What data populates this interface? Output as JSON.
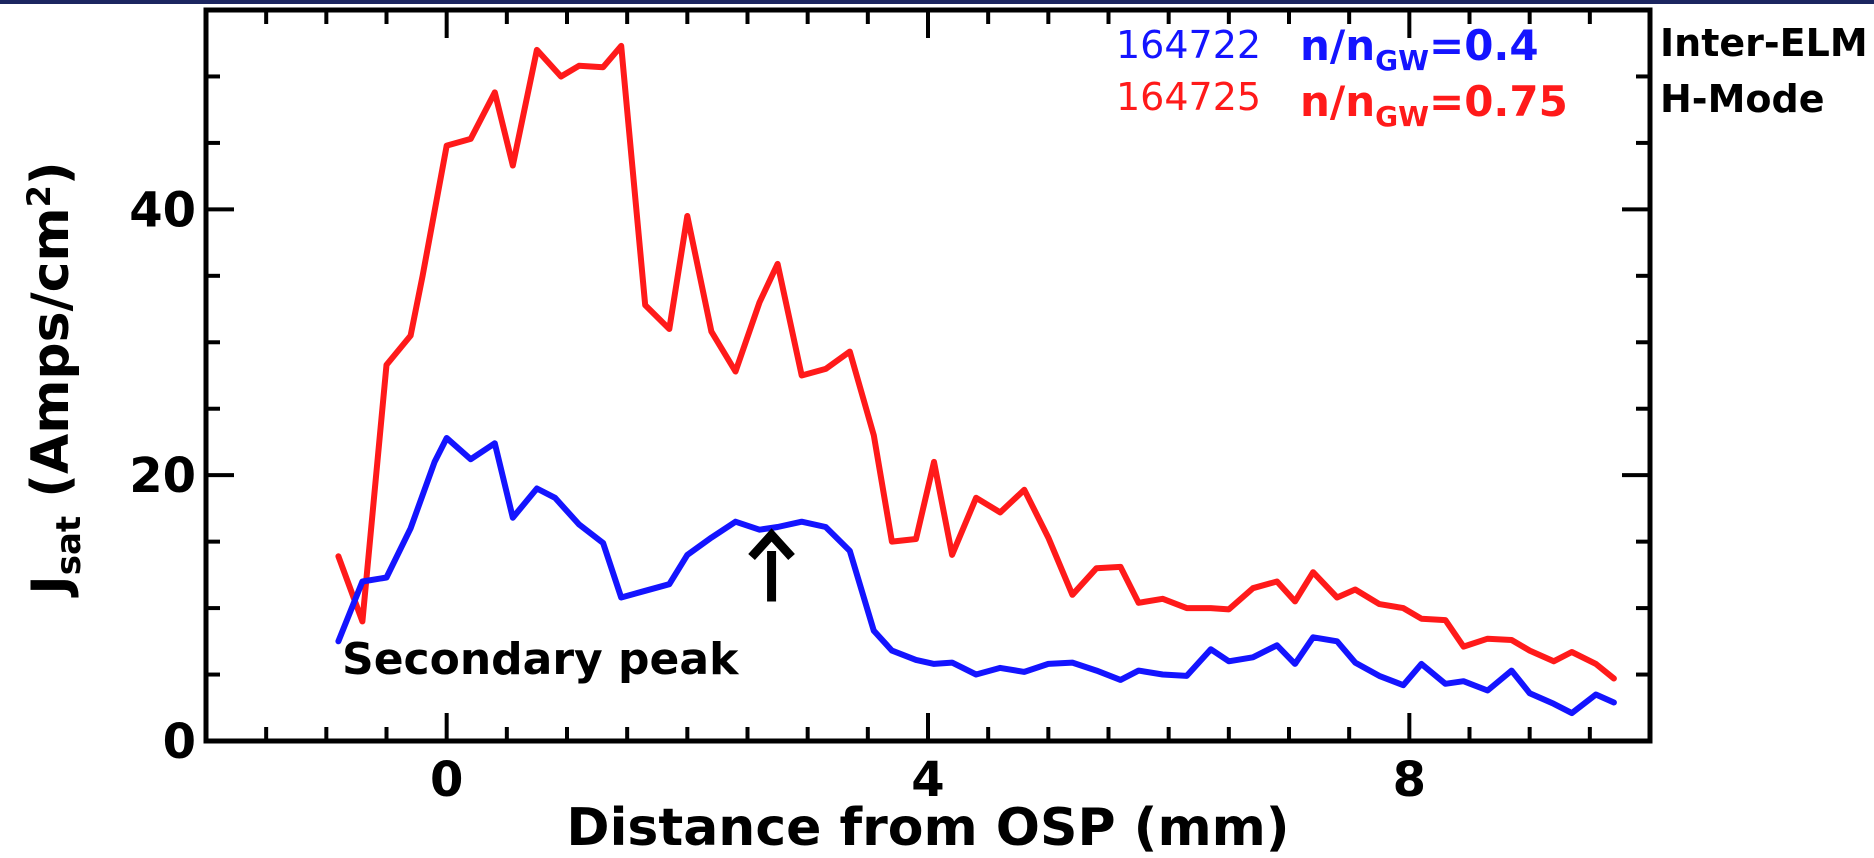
{
  "chart_data": {
    "type": "line",
    "xlabel": "Distance from OSP (mm)",
    "ylabel_main": "J",
    "ylabel_sub": "sat",
    "ylabel_units_pre": " (Amps/cm",
    "ylabel_units_sup": "2",
    "ylabel_units_post": ")",
    "xlim": [
      -2,
      10
    ],
    "ylim": [
      0,
      55
    ],
    "xticks": [
      0,
      4,
      8
    ],
    "yticks": [
      0,
      20,
      40
    ],
    "grid": false,
    "legend": {
      "position": "top-right",
      "entries": [
        {
          "shot": "164722",
          "ratio_pre": "n/n",
          "ratio_sub": "GW",
          "ratio_post": "=0.4",
          "color": "#1414ff"
        },
        {
          "shot": "164725",
          "ratio_pre": "n/n",
          "ratio_sub": "GW",
          "ratio_post": "=0.75",
          "color": "#ff1a1a"
        }
      ]
    },
    "side_text": [
      "Inter-ELM",
      "H-Mode"
    ],
    "annotation": {
      "text": "Secondary peak",
      "arrow_x": 2.7,
      "arrow_y_tip": 15.5,
      "arrow_y_tail": 10.5
    },
    "series": [
      {
        "color": "#ff1a1a",
        "x": [
          -0.9,
          -0.7,
          -0.5,
          -0.3,
          -0.2,
          0.0,
          0.2,
          0.4,
          0.55,
          0.75,
          0.95,
          1.1,
          1.3,
          1.45,
          1.65,
          1.85,
          2.0,
          2.2,
          2.4,
          2.6,
          2.75,
          2.95,
          3.15,
          3.35,
          3.55,
          3.7,
          3.9,
          4.05,
          4.2,
          4.4,
          4.6,
          4.8,
          5.0,
          5.2,
          5.4,
          5.6,
          5.75,
          5.95,
          6.15,
          6.35,
          6.5,
          6.7,
          6.9,
          7.05,
          7.2,
          7.4,
          7.55,
          7.75,
          7.95,
          8.1,
          8.3,
          8.45,
          8.65,
          8.85,
          9.0,
          9.2,
          9.35,
          9.55,
          9.7
        ],
        "values": [
          13.9,
          9.0,
          28.3,
          30.5,
          35.0,
          44.8,
          45.3,
          48.8,
          43.3,
          52.0,
          50.0,
          50.8,
          50.7,
          52.3,
          32.8,
          31.0,
          39.5,
          30.8,
          27.8,
          33.0,
          35.9,
          27.5,
          28.0,
          29.3,
          23.0,
          15.0,
          15.2,
          21.0,
          14.0,
          18.3,
          17.2,
          18.9,
          15.3,
          11.0,
          13.0,
          13.1,
          10.4,
          10.7,
          10.0,
          10.0,
          9.9,
          11.5,
          12.0,
          10.5,
          12.7,
          10.8,
          11.4,
          10.3,
          10.0,
          9.2,
          9.1,
          7.1,
          7.7,
          7.6,
          6.8,
          6.0,
          6.7,
          5.8,
          4.7
        ]
      },
      {
        "color": "#1414ff",
        "x": [
          -0.9,
          -0.7,
          -0.5,
          -0.3,
          -0.1,
          0.0,
          0.2,
          0.4,
          0.55,
          0.75,
          0.9,
          1.1,
          1.3,
          1.45,
          1.65,
          1.85,
          2.0,
          2.2,
          2.4,
          2.6,
          2.75,
          2.95,
          3.15,
          3.35,
          3.55,
          3.7,
          3.9,
          4.05,
          4.2,
          4.4,
          4.6,
          4.8,
          5.0,
          5.2,
          5.4,
          5.6,
          5.75,
          5.95,
          6.15,
          6.35,
          6.5,
          6.7,
          6.9,
          7.05,
          7.2,
          7.4,
          7.55,
          7.75,
          7.95,
          8.1,
          8.3,
          8.45,
          8.65,
          8.85,
          9.0,
          9.2,
          9.35,
          9.55,
          9.7
        ],
        "values": [
          7.5,
          12.0,
          12.3,
          16.0,
          21.0,
          22.8,
          21.2,
          22.4,
          16.8,
          19.0,
          18.3,
          16.3,
          14.9,
          10.8,
          11.3,
          11.8,
          14.0,
          15.3,
          16.5,
          15.9,
          16.1,
          16.5,
          16.1,
          14.3,
          8.3,
          6.8,
          6.1,
          5.8,
          5.9,
          5.0,
          5.5,
          5.2,
          5.8,
          5.9,
          5.3,
          4.6,
          5.3,
          5.0,
          4.9,
          6.9,
          6.0,
          6.3,
          7.2,
          5.8,
          7.8,
          7.5,
          5.9,
          4.9,
          4.2,
          5.8,
          4.3,
          4.5,
          3.8,
          5.3,
          3.6,
          2.8,
          2.1,
          3.5,
          2.9
        ]
      }
    ]
  }
}
